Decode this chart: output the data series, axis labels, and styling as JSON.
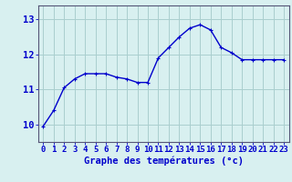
{
  "x": [
    0,
    1,
    2,
    3,
    4,
    5,
    6,
    7,
    8,
    9,
    10,
    11,
    12,
    13,
    14,
    15,
    16,
    17,
    18,
    19,
    20,
    21,
    22,
    23
  ],
  "y": [
    9.95,
    10.4,
    11.05,
    11.3,
    11.45,
    11.45,
    11.45,
    11.35,
    11.3,
    11.2,
    11.2,
    11.9,
    12.2,
    12.5,
    12.75,
    12.85,
    12.7,
    12.2,
    12.05,
    11.85,
    11.85,
    11.85,
    11.85,
    11.85
  ],
  "line_color": "#0000cc",
  "marker": "+",
  "marker_size": 3,
  "marker_lw": 0.8,
  "bg_color": "#d8f0f0",
  "grid_color": "#aacece",
  "xlabel": "Graphe des températures (°c)",
  "xlabel_color": "#0000cc",
  "xlabel_fontsize": 7.5,
  "ylabel_ticks": [
    10,
    11,
    12,
    13
  ],
  "ylim": [
    9.5,
    13.4
  ],
  "xlim": [
    -0.5,
    23.5
  ],
  "tick_color": "#0000cc",
  "tick_fontsize": 6.5,
  "ytick_fontsize": 7.5,
  "spine_color": "#555577",
  "line_width": 1.0
}
